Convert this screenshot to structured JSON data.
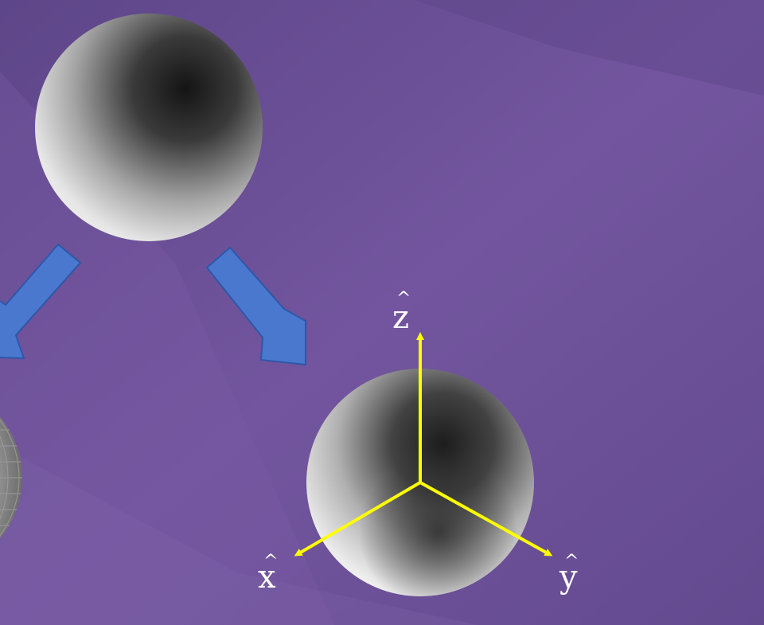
{
  "axes": {
    "x_label": "x",
    "y_label": "y",
    "z_label": "z",
    "hat_symbol": "^"
  },
  "colors": {
    "background": "#6a4f95",
    "arrow_fill": "#4a78cf",
    "arrow_stroke": "#2e57a8",
    "axis_color": "#ffff00",
    "label_color": "#ffffff"
  },
  "icons": {
    "top_sphere": "shaded-sphere-icon",
    "left_sphere": "wireframe-sphere-icon",
    "right_sphere": "shaded-sphere-with-axes-icon",
    "left_arrow": "arrow-down-left-icon",
    "right_arrow": "arrow-down-right-icon"
  }
}
